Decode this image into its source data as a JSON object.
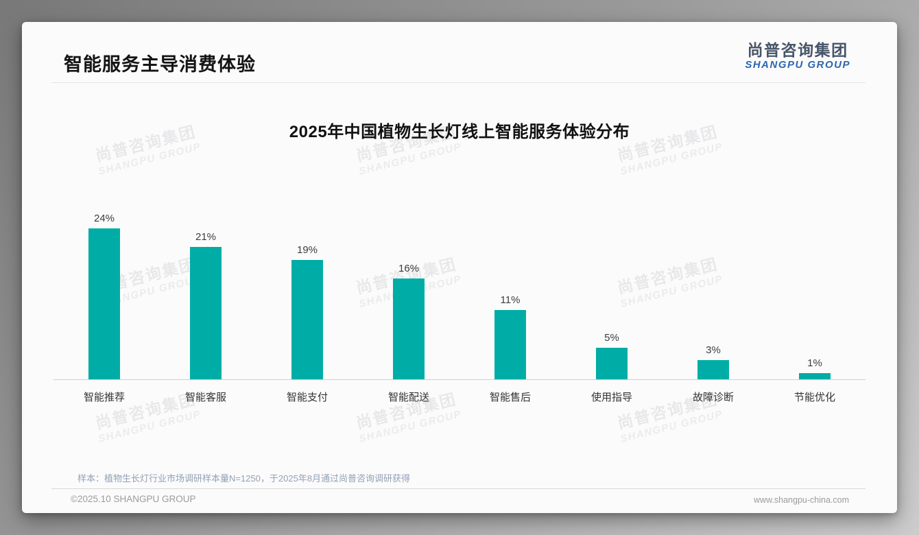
{
  "page": {
    "title": "智能服务主导消费体验"
  },
  "logo": {
    "cn": "尚普咨询集团",
    "en": "SHANGPU GROUP"
  },
  "watermark": {
    "cn": "尚普咨询集团",
    "en": "SHANGPU GROUP"
  },
  "chart_data": {
    "type": "bar",
    "title": "2025年中国植物生长灯线上智能服务体验分布",
    "categories": [
      "智能推荐",
      "智能客服",
      "智能支付",
      "智能配送",
      "智能售后",
      "使用指导",
      "故障诊断",
      "节能优化"
    ],
    "values": [
      24,
      21,
      19,
      16,
      11,
      5,
      3,
      1
    ],
    "unit": "%",
    "bar_color": "#00ADA6",
    "value_label_color": "#3d3d3d",
    "xlabel": "",
    "ylabel": "",
    "ylim": [
      0,
      26
    ],
    "grid": false,
    "legend": false
  },
  "note": "样本：植物生长灯行业市场调研样本量N=1250，于2025年8月通过尚普咨询调研获得",
  "footer": {
    "left": "©2025.10 SHANGPU GROUP",
    "right": "www.shangpu-china.com"
  }
}
